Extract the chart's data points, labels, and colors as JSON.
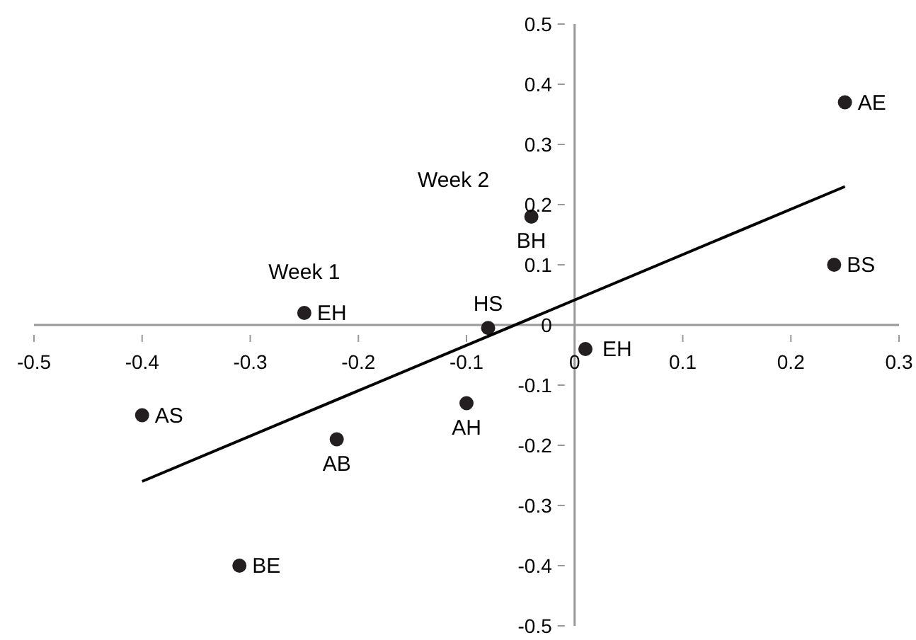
{
  "chart_data": {
    "type": "scatter",
    "series": [
      {
        "type": "scatter",
        "color": "#231f20",
        "marker": "circle",
        "x": [
          0.25,
          0.24,
          -0.04,
          -0.25,
          -0.08,
          0.01,
          -0.4,
          -0.22,
          -0.1,
          -0.31
        ],
        "values": [
          0.37,
          0.1,
          0.18,
          0.02,
          -0.005,
          -0.04,
          -0.15,
          -0.19,
          -0.13,
          -0.4
        ]
      },
      {
        "type": "line",
        "color": "#000000",
        "x": [
          -0.4,
          0.25
        ],
        "values": [
          -0.26,
          0.23
        ]
      }
    ],
    "xlim": [
      -0.5,
      0.3
    ],
    "xticks": [
      -0.5,
      -0.4,
      -0.3,
      -0.2,
      -0.1,
      0,
      0.1,
      0.2,
      0.3
    ],
    "ylim": [
      -0.5,
      0.5
    ],
    "yticks": [
      -0.5,
      -0.4,
      -0.3,
      -0.2,
      -0.1,
      0,
      0.1,
      0.2,
      0.3,
      0.4,
      0.5
    ],
    "annotations": [
      {
        "text": "AE",
        "x": 0.25,
        "y": 0.37
      },
      {
        "text": "BS",
        "x": 0.24,
        "y": 0.1
      },
      {
        "text": "BH",
        "x": -0.04,
        "y": 0.18
      },
      {
        "text": "EH",
        "x": -0.25,
        "y": 0.02
      },
      {
        "text": "HS",
        "x": -0.08,
        "y": -0.005
      },
      {
        "text": "EH",
        "x": 0.01,
        "y": -0.04
      },
      {
        "text": "AS",
        "x": -0.4,
        "y": -0.15
      },
      {
        "text": "AB",
        "x": -0.22,
        "y": -0.19
      },
      {
        "text": "AH",
        "x": -0.1,
        "y": -0.13
      },
      {
        "text": "BE",
        "x": -0.31,
        "y": -0.4
      },
      {
        "text": "Week 1",
        "x": -0.25,
        "y": 0.02
      },
      {
        "text": "Week 2",
        "x": -0.04,
        "y": 0.18
      }
    ]
  }
}
